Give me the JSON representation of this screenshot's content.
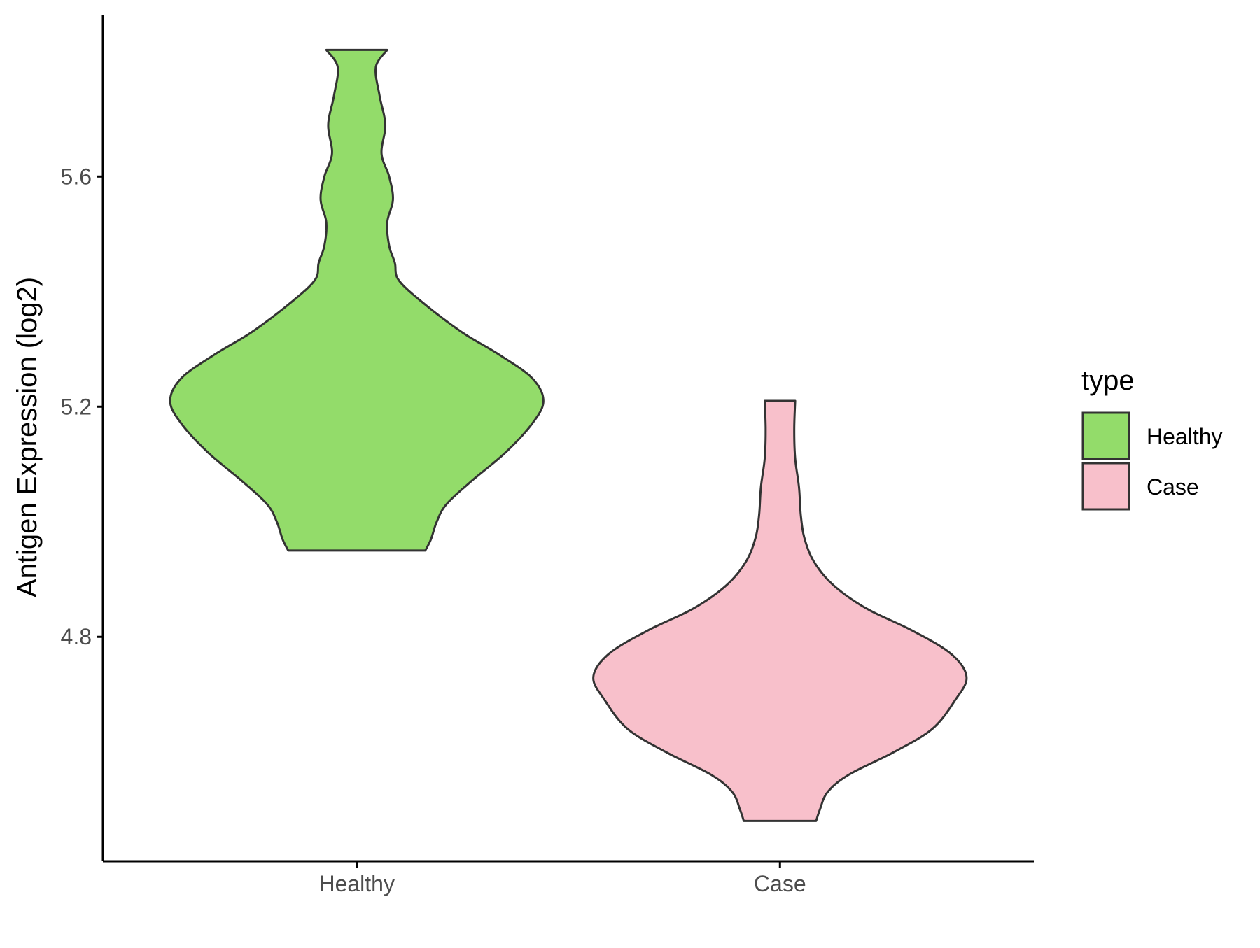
{
  "chart_data": {
    "type": "violin",
    "ylabel": "Antigen Expression (log2)",
    "xlabel": "",
    "categories": [
      "Healthy",
      "Case"
    ],
    "yticks": [
      4.8,
      5.2,
      5.6
    ],
    "ylim": [
      4.41,
      5.88
    ],
    "legend": {
      "title": "type",
      "placement": "right",
      "items": [
        {
          "label": "Healthy",
          "color": "#93DC6A"
        },
        {
          "label": "Case",
          "color": "#F8C0CB"
        }
      ]
    },
    "series": [
      {
        "name": "Healthy",
        "color": "#93DC6A",
        "y_min": 4.95,
        "y_max": 5.82,
        "density_profile": [
          [
            4.95,
            0.36
          ],
          [
            4.97,
            0.39
          ],
          [
            5.0,
            0.42
          ],
          [
            5.03,
            0.47
          ],
          [
            5.07,
            0.6
          ],
          [
            5.12,
            0.78
          ],
          [
            5.17,
            0.92
          ],
          [
            5.21,
            0.98
          ],
          [
            5.25,
            0.92
          ],
          [
            5.29,
            0.75
          ],
          [
            5.33,
            0.55
          ],
          [
            5.38,
            0.35
          ],
          [
            5.42,
            0.22
          ],
          [
            5.45,
            0.2
          ],
          [
            5.48,
            0.17
          ],
          [
            5.52,
            0.16
          ],
          [
            5.56,
            0.19
          ],
          [
            5.6,
            0.17
          ],
          [
            5.64,
            0.13
          ],
          [
            5.69,
            0.15
          ],
          [
            5.74,
            0.12
          ],
          [
            5.79,
            0.1
          ],
          [
            5.82,
            0.16
          ]
        ]
      },
      {
        "name": "Case",
        "color": "#F8C0CB",
        "y_min": 4.48,
        "y_max": 5.21,
        "density_profile": [
          [
            4.48,
            0.19
          ],
          [
            4.5,
            0.21
          ],
          [
            4.53,
            0.25
          ],
          [
            4.56,
            0.36
          ],
          [
            4.6,
            0.6
          ],
          [
            4.64,
            0.8
          ],
          [
            4.69,
            0.92
          ],
          [
            4.73,
            0.98
          ],
          [
            4.77,
            0.9
          ],
          [
            4.81,
            0.7
          ],
          [
            4.85,
            0.45
          ],
          [
            4.89,
            0.28
          ],
          [
            4.93,
            0.18
          ],
          [
            4.97,
            0.13
          ],
          [
            5.01,
            0.11
          ],
          [
            5.06,
            0.1
          ],
          [
            5.11,
            0.08
          ],
          [
            5.16,
            0.075
          ],
          [
            5.21,
            0.08
          ]
        ]
      }
    ]
  }
}
